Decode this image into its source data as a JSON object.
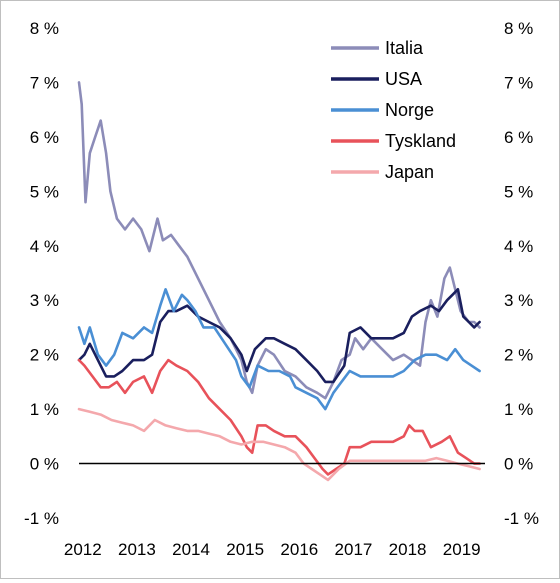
{
  "chart_data": {
    "type": "line",
    "title": "",
    "xlabel": "",
    "ylabel": "",
    "y_unit": "%",
    "ylim": [
      -1,
      8
    ],
    "xlim": [
      2012.0,
      2019.5
    ],
    "y_ticks": [
      {
        "value": 8,
        "label": "8 %"
      },
      {
        "value": 7,
        "label": "7 %"
      },
      {
        "value": 6,
        "label": "6 %"
      },
      {
        "value": 5,
        "label": "5 %"
      },
      {
        "value": 4,
        "label": "4 %"
      },
      {
        "value": 3,
        "label": "3 %"
      },
      {
        "value": 2,
        "label": "2 %"
      },
      {
        "value": 1,
        "label": "1 %"
      },
      {
        "value": 0,
        "label": "0 %"
      },
      {
        "value": -1,
        "label": "-1 %"
      }
    ],
    "x_ticks": [
      {
        "value": 2012,
        "label": "2012"
      },
      {
        "value": 2013,
        "label": "2013"
      },
      {
        "value": 2014,
        "label": "2014"
      },
      {
        "value": 2015,
        "label": "2015"
      },
      {
        "value": 2016,
        "label": "2016"
      },
      {
        "value": 2017,
        "label": "2017"
      },
      {
        "value": 2018,
        "label": "2018"
      },
      {
        "value": 2019,
        "label": "2019"
      }
    ],
    "y_axis_both_sides": true,
    "grid": false,
    "zero_line": true,
    "legend_placement": "top-right",
    "series": [
      {
        "name": "Italia",
        "color": "#8c8cb8",
        "x": [
          2012.0,
          2012.05,
          2012.12,
          2012.2,
          2012.3,
          2012.4,
          2012.5,
          2012.58,
          2012.7,
          2012.85,
          2013.0,
          2013.15,
          2013.3,
          2013.45,
          2013.55,
          2013.7,
          2013.85,
          2014.0,
          2014.2,
          2014.4,
          2014.6,
          2014.8,
          2015.0,
          2015.1,
          2015.2,
          2015.3,
          2015.45,
          2015.6,
          2015.8,
          2016.0,
          2016.2,
          2016.4,
          2016.55,
          2016.7,
          2016.85,
          2017.0,
          2017.1,
          2017.25,
          2017.4,
          2017.6,
          2017.8,
          2018.0,
          2018.15,
          2018.3,
          2018.4,
          2018.5,
          2018.62,
          2018.75,
          2018.85,
          2018.95,
          2019.05,
          2019.2,
          2019.3,
          2019.4
        ],
        "values": [
          7.0,
          6.6,
          4.8,
          5.7,
          6.0,
          6.3,
          5.7,
          5.0,
          4.5,
          4.3,
          4.5,
          4.3,
          3.9,
          4.5,
          4.1,
          4.2,
          4.0,
          3.8,
          3.4,
          3.0,
          2.6,
          2.3,
          1.9,
          1.5,
          1.3,
          1.8,
          2.1,
          2.0,
          1.7,
          1.6,
          1.4,
          1.3,
          1.2,
          1.5,
          1.9,
          2.0,
          2.3,
          2.1,
          2.3,
          2.1,
          1.9,
          2.0,
          1.9,
          1.8,
          2.6,
          3.0,
          2.7,
          3.4,
          3.6,
          3.2,
          2.8,
          2.6,
          2.6,
          2.5
        ]
      },
      {
        "name": "USA",
        "color": "#1a1f5e",
        "x": [
          2012.0,
          2012.1,
          2012.2,
          2012.35,
          2012.5,
          2012.65,
          2012.8,
          2013.0,
          2013.2,
          2013.35,
          2013.5,
          2013.65,
          2013.8,
          2014.0,
          2014.2,
          2014.4,
          2014.6,
          2014.8,
          2015.0,
          2015.1,
          2015.25,
          2015.45,
          2015.6,
          2015.8,
          2016.0,
          2016.2,
          2016.4,
          2016.55,
          2016.7,
          2016.9,
          2017.0,
          2017.2,
          2017.4,
          2017.6,
          2017.8,
          2018.0,
          2018.15,
          2018.3,
          2018.5,
          2018.65,
          2018.8,
          2018.9,
          2019.0,
          2019.1,
          2019.2,
          2019.3,
          2019.4
        ],
        "values": [
          1.9,
          2.0,
          2.2,
          1.9,
          1.6,
          1.6,
          1.7,
          1.9,
          1.9,
          2.0,
          2.6,
          2.8,
          2.8,
          2.9,
          2.7,
          2.6,
          2.5,
          2.3,
          2.0,
          1.7,
          2.1,
          2.3,
          2.3,
          2.2,
          2.1,
          1.9,
          1.7,
          1.5,
          1.5,
          1.8,
          2.4,
          2.5,
          2.3,
          2.3,
          2.3,
          2.4,
          2.7,
          2.8,
          2.9,
          2.8,
          3.0,
          3.1,
          3.2,
          2.7,
          2.6,
          2.5,
          2.6
        ]
      },
      {
        "name": "Norge",
        "color": "#4a8fd4",
        "x": [
          2012.0,
          2012.1,
          2012.2,
          2012.35,
          2012.5,
          2012.65,
          2012.8,
          2013.0,
          2013.2,
          2013.35,
          2013.5,
          2013.6,
          2013.75,
          2013.9,
          2014.0,
          2014.15,
          2014.3,
          2014.5,
          2014.7,
          2014.9,
          2015.0,
          2015.15,
          2015.3,
          2015.5,
          2015.7,
          2015.9,
          2016.0,
          2016.2,
          2016.4,
          2016.55,
          2016.7,
          2016.85,
          2017.0,
          2017.2,
          2017.4,
          2017.6,
          2017.8,
          2018.0,
          2018.2,
          2018.4,
          2018.6,
          2018.8,
          2018.95,
          2019.1,
          2019.25,
          2019.4
        ],
        "values": [
          2.5,
          2.2,
          2.5,
          2.0,
          1.8,
          2.0,
          2.4,
          2.3,
          2.5,
          2.4,
          2.9,
          3.2,
          2.8,
          3.1,
          3.0,
          2.8,
          2.5,
          2.5,
          2.2,
          1.9,
          1.6,
          1.4,
          1.8,
          1.7,
          1.7,
          1.6,
          1.4,
          1.3,
          1.2,
          1.0,
          1.3,
          1.5,
          1.7,
          1.6,
          1.6,
          1.6,
          1.6,
          1.7,
          1.9,
          2.0,
          2.0,
          1.9,
          2.1,
          1.9,
          1.8,
          1.7
        ]
      },
      {
        "name": "Tyskland",
        "color": "#e8525a",
        "x": [
          2012.0,
          2012.1,
          2012.25,
          2012.4,
          2012.55,
          2012.7,
          2012.85,
          2013.0,
          2013.2,
          2013.35,
          2013.5,
          2013.65,
          2013.8,
          2014.0,
          2014.2,
          2014.4,
          2014.6,
          2014.8,
          2015.0,
          2015.1,
          2015.2,
          2015.3,
          2015.45,
          2015.6,
          2015.8,
          2016.0,
          2016.2,
          2016.35,
          2016.5,
          2016.6,
          2016.75,
          2016.9,
          2017.0,
          2017.2,
          2017.4,
          2017.6,
          2017.8,
          2018.0,
          2018.1,
          2018.2,
          2018.35,
          2018.5,
          2018.7,
          2018.85,
          2019.0,
          2019.15,
          2019.3,
          2019.4
        ],
        "values": [
          1.9,
          1.8,
          1.6,
          1.4,
          1.4,
          1.5,
          1.3,
          1.5,
          1.6,
          1.3,
          1.7,
          1.9,
          1.8,
          1.7,
          1.5,
          1.2,
          1.0,
          0.8,
          0.5,
          0.3,
          0.2,
          0.7,
          0.7,
          0.6,
          0.5,
          0.5,
          0.3,
          0.1,
          -0.1,
          -0.2,
          -0.1,
          0.0,
          0.3,
          0.3,
          0.4,
          0.4,
          0.4,
          0.5,
          0.7,
          0.6,
          0.6,
          0.3,
          0.4,
          0.5,
          0.2,
          0.1,
          0.0,
          0.0
        ]
      },
      {
        "name": "Japan",
        "color": "#f4a8ac",
        "x": [
          2012.0,
          2012.2,
          2012.4,
          2012.6,
          2012.8,
          2013.0,
          2013.2,
          2013.4,
          2013.6,
          2013.8,
          2014.0,
          2014.2,
          2014.4,
          2014.6,
          2014.8,
          2015.0,
          2015.2,
          2015.4,
          2015.6,
          2015.8,
          2016.0,
          2016.15,
          2016.3,
          2016.45,
          2016.6,
          2016.8,
          2017.0,
          2017.2,
          2017.4,
          2017.6,
          2017.8,
          2018.0,
          2018.2,
          2018.4,
          2018.6,
          2018.8,
          2019.0,
          2019.2,
          2019.4
        ],
        "values": [
          1.0,
          0.95,
          0.9,
          0.8,
          0.75,
          0.7,
          0.6,
          0.8,
          0.7,
          0.65,
          0.6,
          0.6,
          0.55,
          0.5,
          0.4,
          0.35,
          0.4,
          0.4,
          0.35,
          0.3,
          0.2,
          0.0,
          -0.1,
          -0.2,
          -0.3,
          -0.1,
          0.05,
          0.05,
          0.05,
          0.05,
          0.05,
          0.05,
          0.05,
          0.05,
          0.1,
          0.05,
          0.0,
          -0.05,
          -0.1
        ]
      }
    ]
  }
}
